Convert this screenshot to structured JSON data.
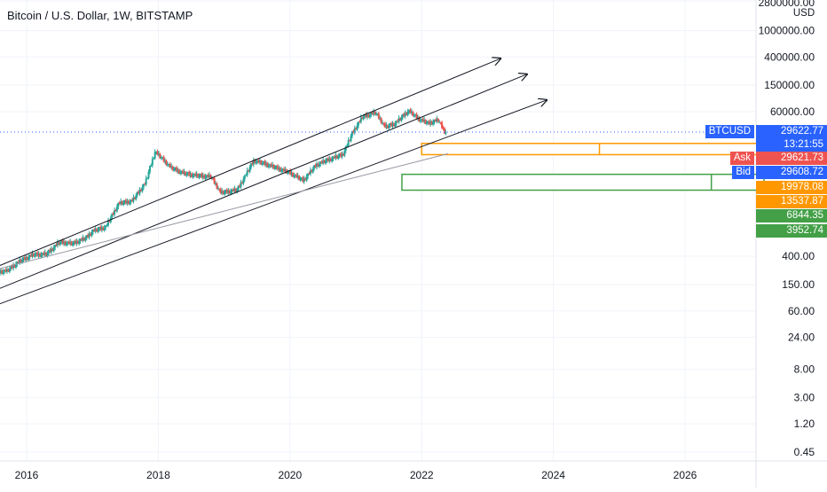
{
  "chart_data": {
    "type": "candlestick",
    "title": "Bitcoin / U.S. Dollar, 1W, BITSTAMP",
    "axis_unit": "USD",
    "y_scale": "log",
    "y_ticks": [
      "2800000.00",
      "1000000.00",
      "400000.00",
      "150000.00",
      "60000.00",
      "400.00",
      "150.00",
      "60.00",
      "24.00",
      "8.00",
      "3.00",
      "1.20",
      "0.45"
    ],
    "x_ticks": [
      "2016",
      "2018",
      "2020",
      "2022",
      "2024",
      "2026"
    ],
    "x_range": [
      2015.3,
      2027.2
    ],
    "y_range": [
      0.3,
      2800000
    ],
    "series": [
      {
        "points": [
          [
            2015.3,
            160
          ],
          [
            2015.5,
            230
          ],
          [
            2015.7,
            240
          ],
          [
            2015.9,
            340
          ],
          [
            2016.1,
            420
          ],
          [
            2016.3,
            430
          ],
          [
            2016.5,
            650
          ],
          [
            2016.7,
            620
          ],
          [
            2016.9,
            750
          ],
          [
            2017.0,
            950
          ],
          [
            2017.2,
            1100
          ],
          [
            2017.4,
            2500
          ],
          [
            2017.6,
            2700
          ],
          [
            2017.8,
            5000
          ],
          [
            2017.95,
            15000
          ],
          [
            2018.05,
            12000
          ],
          [
            2018.2,
            8500
          ],
          [
            2018.4,
            7000
          ],
          [
            2018.6,
            6500
          ],
          [
            2018.8,
            6300
          ],
          [
            2018.95,
            3600
          ],
          [
            2019.2,
            4000
          ],
          [
            2019.45,
            11000
          ],
          [
            2019.6,
            10000
          ],
          [
            2019.8,
            8500
          ],
          [
            2020.0,
            7200
          ],
          [
            2020.2,
            5500
          ],
          [
            2020.4,
            9500
          ],
          [
            2020.6,
            11500
          ],
          [
            2020.8,
            13500
          ],
          [
            2020.95,
            29000
          ],
          [
            2021.1,
            50000
          ],
          [
            2021.3,
            58000
          ],
          [
            2021.45,
            35000
          ],
          [
            2021.6,
            40000
          ],
          [
            2021.8,
            62000
          ],
          [
            2021.95,
            47000
          ],
          [
            2022.1,
            40000
          ],
          [
            2022.25,
            45000
          ],
          [
            2022.35,
            30000
          ],
          [
            2022.38,
            29600
          ]
        ]
      }
    ],
    "trend_lines": [
      {
        "from": [
          2015.3,
          220
        ],
        "to": [
          2023.2,
          380000
        ]
      },
      {
        "from": [
          2015.3,
          100
        ],
        "to": [
          2023.6,
          220000
        ]
      },
      {
        "from": [
          2015.3,
          60
        ],
        "to": [
          2023.9,
          90000
        ]
      },
      {
        "from": [
          2015.3,
          220
        ],
        "to": [
          2022.4,
          14000
        ]
      }
    ],
    "zones": [
      {
        "name": "orange-zone",
        "x_from": 2022.0,
        "x_to": 2027.2,
        "y_top": 19978.08,
        "y_bottom": 13537.87,
        "divider_x": 2024.7,
        "color": "#ff9800"
      },
      {
        "name": "green-zone",
        "x_from": 2021.7,
        "x_to": 2027.2,
        "y_top": 6844.35,
        "y_bottom": 3952.74,
        "divider_x": 2026.4,
        "color": "#43a047"
      }
    ],
    "current_price": 29622.77,
    "price_labels": [
      {
        "name": "btcusd-label",
        "label": "BTCUSD",
        "value": "29622.77",
        "sub": "13:21:55",
        "color": "#2962ff"
      },
      {
        "name": "ask-label",
        "label": "Ask",
        "value": "29621.73",
        "color": "#ef5350"
      },
      {
        "name": "bid-label",
        "label": "Bid",
        "value": "29608.72",
        "color": "#2962ff"
      },
      {
        "name": "zone-top-orange",
        "value": "19978.08",
        "color": "#ff9800"
      },
      {
        "name": "zone-bottom-orange",
        "value": "13537.87",
        "color": "#ff9800"
      },
      {
        "name": "zone-top-green",
        "value": "6844.35",
        "color": "#43a047"
      },
      {
        "name": "zone-bottom-green",
        "value": "3952.74",
        "color": "#43a047"
      }
    ],
    "colors": {
      "up": "#26a69a",
      "down": "#ef5350",
      "grid": "#f0f3fa",
      "axis_text": "#131722",
      "price_line": "#2962ff"
    }
  }
}
